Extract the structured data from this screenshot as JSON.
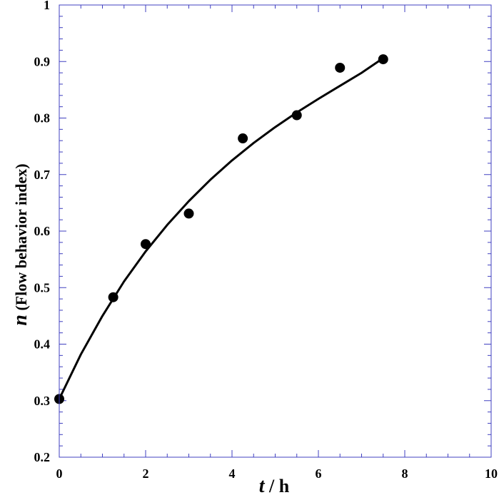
{
  "chart_data": {
    "type": "scatter",
    "xlabel": {
      "var": "t",
      "rest": " / h"
    },
    "ylabel": {
      "var": "n",
      "rest": " (Flow behavior index)"
    },
    "xlim": [
      0,
      10
    ],
    "ylim": [
      0.2,
      1.0
    ],
    "xticks": [
      0,
      2,
      4,
      6,
      8,
      10
    ],
    "xtick_labels": [
      "0",
      "2",
      "4",
      "6",
      "8",
      "10"
    ],
    "yticks": [
      0.2,
      0.3,
      0.4,
      0.5,
      0.6,
      0.7,
      0.8,
      0.9,
      1.0
    ],
    "ytick_labels": [
      "0.2",
      "0.3",
      "0.4",
      "0.5",
      "0.6",
      "0.7",
      "0.8",
      "0.9",
      "1"
    ],
    "grid": false,
    "series": [
      {
        "type": "scatter",
        "marker": "filled-circle",
        "color": "#000000",
        "x": [
          0,
          1.25,
          2.0,
          3.0,
          4.25,
          5.5,
          6.5,
          7.5
        ],
        "y": [
          0.303,
          0.483,
          0.577,
          0.631,
          0.764,
          0.805,
          0.889,
          0.904
        ]
      },
      {
        "type": "line",
        "style": "fitted-curve",
        "color": "#000000",
        "x": [
          0,
          0.5,
          1.0,
          1.5,
          2.0,
          2.5,
          3.0,
          3.5,
          4.0,
          4.5,
          5.0,
          5.5,
          6.0,
          6.5,
          7.0,
          7.5
        ],
        "y": [
          0.303,
          0.382,
          0.45,
          0.511,
          0.564,
          0.611,
          0.653,
          0.691,
          0.725,
          0.756,
          0.784,
          0.81,
          0.834,
          0.857,
          0.88,
          0.906
        ]
      }
    ],
    "frame_color": "#4040c0"
  }
}
